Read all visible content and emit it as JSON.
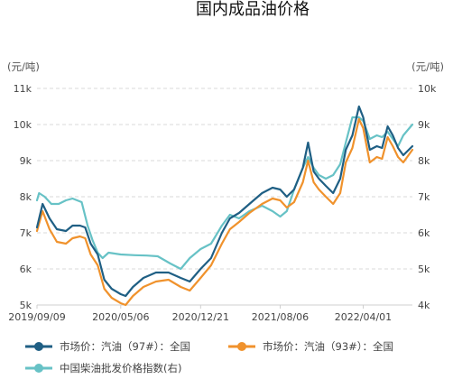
{
  "chart_data": {
    "type": "line",
    "title": "国内成品油价格",
    "left_unit": "(元/吨)",
    "right_unit": "(元/吨)",
    "x_tick_labels": [
      "2019/09/09",
      "2020/05/06",
      "2020/12/21",
      "2021/08/06",
      "2022/04/01"
    ],
    "x_tick_dates": [
      "2019-09-09",
      "2020-05-06",
      "2020-12-21",
      "2021-08-06",
      "2022-04-01"
    ],
    "x_range": [
      "2019-09-09",
      "2022-08-20"
    ],
    "y_left": {
      "min": 5000,
      "max": 11000,
      "ticks": [
        5000,
        6000,
        7000,
        8000,
        9000,
        10000,
        11000
      ],
      "tick_labels": [
        "5k",
        "6k",
        "7k",
        "8k",
        "9k",
        "10k",
        "11k"
      ]
    },
    "y_right": {
      "min": 4000,
      "max": 10000,
      "ticks": [
        4000,
        5000,
        6000,
        7000,
        8000,
        9000,
        10000
      ],
      "tick_labels": [
        "4k",
        "5k",
        "6k",
        "7k",
        "8k",
        "9k",
        "10k"
      ]
    },
    "grid": true,
    "legend_position": "bottom",
    "series": [
      {
        "name": "市场价：汽油（97#）：全国",
        "axis": "left",
        "color": "#1f5f84",
        "points": [
          [
            "2019-09-09",
            7150
          ],
          [
            "2019-09-25",
            7800
          ],
          [
            "2019-10-15",
            7400
          ],
          [
            "2019-11-05",
            7100
          ],
          [
            "2019-12-01",
            7050
          ],
          [
            "2019-12-20",
            7200
          ],
          [
            "2020-01-10",
            7200
          ],
          [
            "2020-01-25",
            7150
          ],
          [
            "2020-02-10",
            6700
          ],
          [
            "2020-03-01",
            6400
          ],
          [
            "2020-03-20",
            5700
          ],
          [
            "2020-04-10",
            5450
          ],
          [
            "2020-05-06",
            5300
          ],
          [
            "2020-05-20",
            5250
          ],
          [
            "2020-06-10",
            5500
          ],
          [
            "2020-07-10",
            5750
          ],
          [
            "2020-08-15",
            5900
          ],
          [
            "2020-09-20",
            5900
          ],
          [
            "2020-10-25",
            5750
          ],
          [
            "2020-11-20",
            5650
          ],
          [
            "2020-12-21",
            6000
          ],
          [
            "2021-01-20",
            6300
          ],
          [
            "2021-02-20",
            7000
          ],
          [
            "2021-03-15",
            7400
          ],
          [
            "2021-04-10",
            7550
          ],
          [
            "2021-05-10",
            7800
          ],
          [
            "2021-06-15",
            8100
          ],
          [
            "2021-07-15",
            8250
          ],
          [
            "2021-08-06",
            8200
          ],
          [
            "2021-08-25",
            8000
          ],
          [
            "2021-09-15",
            8200
          ],
          [
            "2021-10-10",
            8800
          ],
          [
            "2021-10-25",
            9500
          ],
          [
            "2021-11-10",
            8700
          ],
          [
            "2021-11-25",
            8500
          ],
          [
            "2021-12-15",
            8300
          ],
          [
            "2022-01-05",
            8100
          ],
          [
            "2022-01-25",
            8500
          ],
          [
            "2022-02-10",
            9300
          ],
          [
            "2022-03-01",
            9700
          ],
          [
            "2022-03-20",
            10500
          ],
          [
            "2022-04-01",
            10200
          ],
          [
            "2022-04-20",
            9300
          ],
          [
            "2022-05-10",
            9400
          ],
          [
            "2022-05-25",
            9350
          ],
          [
            "2022-06-10",
            9950
          ],
          [
            "2022-06-25",
            9700
          ],
          [
            "2022-07-10",
            9350
          ],
          [
            "2022-07-25",
            9150
          ],
          [
            "2022-08-20",
            9400
          ]
        ]
      },
      {
        "name": "市场价：汽油（93#）：全国",
        "axis": "left",
        "color": "#f0922c",
        "points": [
          [
            "2019-09-09",
            7050
          ],
          [
            "2019-09-25",
            7600
          ],
          [
            "2019-10-15",
            7100
          ],
          [
            "2019-11-05",
            6750
          ],
          [
            "2019-12-01",
            6700
          ],
          [
            "2019-12-20",
            6850
          ],
          [
            "2020-01-10",
            6900
          ],
          [
            "2020-01-25",
            6850
          ],
          [
            "2020-02-10",
            6400
          ],
          [
            "2020-03-01",
            6100
          ],
          [
            "2020-03-20",
            5450
          ],
          [
            "2020-04-10",
            5200
          ],
          [
            "2020-05-06",
            5050
          ],
          [
            "2020-05-20",
            5000
          ],
          [
            "2020-06-10",
            5250
          ],
          [
            "2020-07-10",
            5500
          ],
          [
            "2020-08-15",
            5650
          ],
          [
            "2020-09-20",
            5700
          ],
          [
            "2020-10-25",
            5500
          ],
          [
            "2020-11-20",
            5400
          ],
          [
            "2020-12-21",
            5750
          ],
          [
            "2021-01-20",
            6100
          ],
          [
            "2021-02-20",
            6700
          ],
          [
            "2021-03-15",
            7100
          ],
          [
            "2021-04-10",
            7300
          ],
          [
            "2021-05-10",
            7550
          ],
          [
            "2021-06-15",
            7800
          ],
          [
            "2021-07-15",
            7950
          ],
          [
            "2021-08-06",
            7900
          ],
          [
            "2021-08-25",
            7700
          ],
          [
            "2021-09-15",
            7850
          ],
          [
            "2021-10-10",
            8400
          ],
          [
            "2021-10-25",
            9000
          ],
          [
            "2021-11-10",
            8400
          ],
          [
            "2021-11-25",
            8200
          ],
          [
            "2021-12-15",
            8000
          ],
          [
            "2022-01-05",
            7800
          ],
          [
            "2022-01-25",
            8100
          ],
          [
            "2022-02-10",
            8950
          ],
          [
            "2022-03-01",
            9350
          ],
          [
            "2022-03-20",
            10150
          ],
          [
            "2022-04-01",
            9900
          ],
          [
            "2022-04-20",
            8950
          ],
          [
            "2022-05-10",
            9100
          ],
          [
            "2022-05-25",
            9050
          ],
          [
            "2022-06-10",
            9650
          ],
          [
            "2022-06-25",
            9400
          ],
          [
            "2022-07-10",
            9100
          ],
          [
            "2022-07-25",
            8950
          ],
          [
            "2022-08-20",
            9300
          ]
        ]
      },
      {
        "name": "中国柴油批发价格指数(右)",
        "axis": "right",
        "color": "#67c2c6",
        "points": [
          [
            "2019-09-09",
            6900
          ],
          [
            "2019-09-15",
            7100
          ],
          [
            "2019-10-01",
            7000
          ],
          [
            "2019-10-20",
            6800
          ],
          [
            "2019-11-10",
            6800
          ],
          [
            "2019-12-01",
            6900
          ],
          [
            "2019-12-20",
            6950
          ],
          [
            "2020-01-15",
            6850
          ],
          [
            "2020-02-01",
            6200
          ],
          [
            "2020-02-15",
            5800
          ],
          [
            "2020-03-01",
            5450
          ],
          [
            "2020-03-15",
            5300
          ],
          [
            "2020-04-01",
            5450
          ],
          [
            "2020-05-06",
            5400
          ],
          [
            "2020-06-15",
            5380
          ],
          [
            "2020-07-20",
            5370
          ],
          [
            "2020-08-20",
            5350
          ],
          [
            "2020-09-25",
            5150
          ],
          [
            "2020-10-25",
            5000
          ],
          [
            "2020-11-20",
            5300
          ],
          [
            "2020-12-21",
            5550
          ],
          [
            "2021-01-20",
            5700
          ],
          [
            "2021-02-20",
            6200
          ],
          [
            "2021-03-15",
            6500
          ],
          [
            "2021-04-10",
            6400
          ],
          [
            "2021-05-10",
            6600
          ],
          [
            "2021-06-15",
            6750
          ],
          [
            "2021-07-15",
            6600
          ],
          [
            "2021-08-06",
            6450
          ],
          [
            "2021-08-25",
            6600
          ],
          [
            "2021-09-15",
            7200
          ],
          [
            "2021-10-10",
            7800
          ],
          [
            "2021-10-25",
            8100
          ],
          [
            "2021-11-10",
            7800
          ],
          [
            "2021-11-25",
            7600
          ],
          [
            "2021-12-15",
            7500
          ],
          [
            "2022-01-05",
            7600
          ],
          [
            "2022-01-25",
            7900
          ],
          [
            "2022-02-10",
            8500
          ],
          [
            "2022-03-01",
            9200
          ],
          [
            "2022-03-20",
            9200
          ],
          [
            "2022-04-01",
            9100
          ],
          [
            "2022-04-20",
            8600
          ],
          [
            "2022-05-10",
            8700
          ],
          [
            "2022-05-25",
            8650
          ],
          [
            "2022-06-10",
            8800
          ],
          [
            "2022-06-25",
            8600
          ],
          [
            "2022-07-10",
            8400
          ],
          [
            "2022-07-25",
            8700
          ],
          [
            "2022-08-20",
            9000
          ]
        ]
      }
    ]
  }
}
